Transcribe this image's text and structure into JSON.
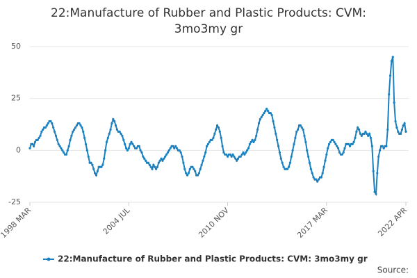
{
  "chart_data": {
    "type": "line",
    "title": "22:Manufacture of Rubber and Plastic Products: CVM: 3mo3my gr",
    "source": "Source:",
    "categories": [
      "1998 MAR",
      null,
      null,
      null,
      null,
      null,
      null,
      null,
      null,
      null,
      null,
      null,
      null,
      null,
      null,
      null,
      null,
      null,
      null,
      null,
      null,
      null,
      null,
      null,
      null,
      null,
      null,
      null,
      null,
      null,
      null,
      null,
      null,
      null,
      null,
      null,
      null,
      null,
      null,
      null,
      null,
      null,
      null,
      null,
      null,
      null,
      null,
      null,
      null,
      null,
      null,
      null,
      null,
      null,
      null,
      null,
      null,
      null,
      null,
      null,
      null,
      null,
      null,
      null,
      null,
      null,
      null,
      null,
      null,
      null,
      null,
      null,
      null,
      null,
      null,
      null,
      "2004 JUL",
      null,
      null,
      null,
      null,
      null,
      null,
      null,
      null,
      null,
      null,
      null,
      null,
      null,
      null,
      null,
      null,
      null,
      null,
      null,
      null,
      null,
      null,
      null,
      null,
      null,
      null,
      null,
      null,
      null,
      null,
      null,
      null,
      null,
      null,
      null,
      null,
      null,
      null,
      null,
      null,
      null,
      null,
      null,
      null,
      null,
      null,
      null,
      null,
      null,
      null,
      null,
      null,
      null,
      null,
      null,
      null,
      null,
      null,
      null,
      null,
      null,
      null,
      null,
      null,
      null,
      null,
      null,
      null,
      null,
      null,
      null,
      null,
      null,
      null,
      null,
      "2010 NOV",
      null,
      null,
      null,
      null,
      null,
      null,
      null,
      null,
      null,
      null,
      null,
      null,
      null,
      null,
      null,
      null,
      null,
      null,
      null,
      null,
      null,
      null,
      null,
      null,
      null,
      null,
      null,
      null,
      null,
      null,
      null,
      null,
      null,
      null,
      null,
      null,
      null,
      null,
      null,
      null,
      null,
      null,
      null,
      null,
      null,
      null,
      null,
      null,
      null,
      null,
      null,
      null,
      null,
      null,
      null,
      null,
      null,
      null,
      null,
      null,
      null,
      null,
      null,
      null,
      null,
      null,
      null,
      null,
      null,
      null,
      null,
      null,
      null,
      null,
      null,
      "2017 MAR",
      null,
      null,
      null,
      null,
      null,
      null,
      null,
      null,
      null,
      null,
      null,
      null,
      null,
      null,
      null,
      null,
      null,
      null,
      null,
      null,
      null,
      null,
      null,
      null,
      null,
      null,
      null,
      null,
      null,
      null,
      null,
      null,
      null,
      null,
      null,
      null,
      null,
      null,
      null,
      null,
      null,
      null,
      null,
      null,
      null,
      null,
      null,
      null,
      null,
      null,
      null,
      null,
      null,
      null,
      null,
      null,
      null,
      null,
      null,
      null,
      "2022 APR"
    ],
    "series": [
      {
        "name": "22:Manufacture of Rubber and Plastic Products: CVM: 3mo3my gr",
        "color": "#1a80c0",
        "values": [
          1,
          3,
          3,
          2,
          4,
          5,
          5,
          6,
          7,
          9,
          10,
          11,
          11,
          12,
          13,
          14,
          14,
          13,
          11,
          9,
          7,
          5,
          3,
          2,
          1,
          0,
          -1,
          -2,
          -2,
          0,
          2,
          5,
          7,
          9,
          10,
          11,
          12,
          13,
          13,
          12,
          11,
          9,
          6,
          3,
          0,
          -3,
          -6,
          -6,
          -7,
          -9,
          -11,
          -12,
          -10,
          -8,
          -8,
          -8,
          -7,
          -4,
          0,
          4,
          6,
          8,
          10,
          13,
          15,
          14,
          12,
          10,
          9,
          9,
          8,
          7,
          5,
          3,
          1,
          0,
          1,
          3,
          4,
          3,
          2,
          1,
          1,
          2,
          2,
          0,
          -1,
          -3,
          -4,
          -5,
          -6,
          -6,
          -7,
          -8,
          -9,
          -7,
          -8,
          -9,
          -8,
          -6,
          -5,
          -4,
          -5,
          -4,
          -3,
          -2,
          -1,
          0,
          1,
          2,
          2,
          1,
          2,
          1,
          0,
          0,
          -1,
          -3,
          -6,
          -9,
          -11,
          -12,
          -11,
          -9,
          -8,
          -8,
          -9,
          -10,
          -12,
          -12,
          -11,
          -9,
          -7,
          -5,
          -3,
          -1,
          2,
          3,
          4,
          5,
          5,
          6,
          8,
          10,
          12,
          11,
          9,
          6,
          2,
          -1,
          -2,
          -2,
          -3,
          -2,
          -2,
          -3,
          -2,
          -3,
          -4,
          -5,
          -4,
          -3,
          -3,
          -2,
          -1,
          -2,
          -1,
          0,
          1,
          3,
          4,
          5,
          4,
          5,
          7,
          10,
          13,
          15,
          16,
          17,
          18,
          19,
          20,
          19,
          18,
          18,
          17,
          14,
          11,
          8,
          5,
          2,
          -1,
          -4,
          -6,
          -8,
          -9,
          -9,
          -9,
          -8,
          -6,
          -3,
          0,
          3,
          6,
          9,
          10,
          12,
          12,
          11,
          10,
          7,
          4,
          0,
          -3,
          -6,
          -9,
          -11,
          -13,
          -14,
          -14,
          -15,
          -14,
          -13,
          -13,
          -11,
          -8,
          -5,
          -2,
          1,
          3,
          4,
          5,
          5,
          4,
          3,
          2,
          1,
          -1,
          -2,
          -2,
          -1,
          1,
          3,
          3,
          3,
          2,
          3,
          3,
          4,
          6,
          9,
          11,
          10,
          8,
          7,
          8,
          8,
          9,
          8,
          7,
          8,
          6,
          2,
          -10,
          -20,
          -21,
          -11,
          -3,
          0,
          2,
          2,
          1,
          2,
          2,
          10,
          27,
          36,
          43,
          45,
          23,
          14,
          11,
          9,
          8,
          8,
          10,
          12,
          13,
          9
        ]
      }
    ],
    "ylim": [
      -25,
      50
    ],
    "yticks": [
      -25,
      0,
      25,
      50
    ],
    "grid": true
  }
}
